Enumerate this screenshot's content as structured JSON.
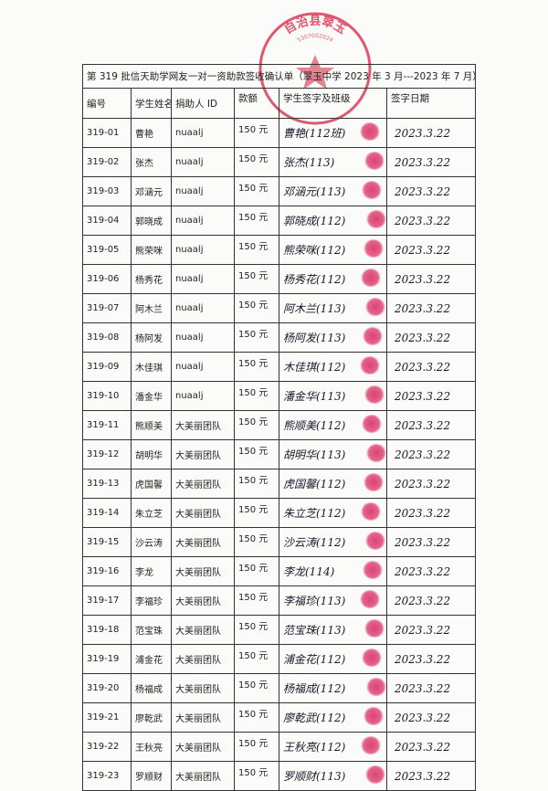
{
  "title": "第 319 批信天助学网友一对一资助款签收确认单（翠玉中学 2023 年 3 月---2023 年 7 月）",
  "headers": [
    "编号",
    "学生姓名",
    "捐助人 ID",
    "款额",
    "学生签字及班级",
    "签字日期"
  ],
  "stamp": {
    "text": "…自治县翠玉…",
    "number": "5307002024",
    "color": "#d8304a"
  },
  "rows": [
    {
      "id": "319-01",
      "name": "曹艳",
      "donor": "nuaalj",
      "amount": "150 元",
      "signature": "曹艳(112班)",
      "date": "2023.3.22"
    },
    {
      "id": "319-02",
      "name": "张杰",
      "donor": "nuaalj",
      "amount": "150 元",
      "signature": "张杰(113)",
      "date": "2023.3.22"
    },
    {
      "id": "319-03",
      "name": "邓涵元",
      "donor": "nuaalj",
      "amount": "150 元",
      "signature": "邓涵元(113)",
      "date": "2023.3.22"
    },
    {
      "id": "319-04",
      "name": "郭晓成",
      "donor": "nuaalj",
      "amount": "150 元",
      "signature": "郭晓成(112)",
      "date": "2023.3.22"
    },
    {
      "id": "319-05",
      "name": "熊荣咪",
      "donor": "nuaalj",
      "amount": "150 元",
      "signature": "熊荣咪(112)",
      "date": "2023.3.22"
    },
    {
      "id": "319-06",
      "name": "杨秀花",
      "donor": "nuaalj",
      "amount": "150 元",
      "signature": "杨秀花(112)",
      "date": "2023.3.22"
    },
    {
      "id": "319-07",
      "name": "阿木兰",
      "donor": "nuaalj",
      "amount": "150 元",
      "signature": "阿木兰(113)",
      "date": "2023.3.22"
    },
    {
      "id": "319-08",
      "name": "杨阿发",
      "donor": "nuaalj",
      "amount": "150 元",
      "signature": "杨阿发(113)",
      "date": "2023.3.22"
    },
    {
      "id": "319-09",
      "name": "木佳琪",
      "donor": "nuaalj",
      "amount": "150 元",
      "signature": "木佳琪(112)",
      "date": "2023.3.22"
    },
    {
      "id": "319-10",
      "name": "潘金华",
      "donor": "nuaalj",
      "amount": "150 元",
      "signature": "潘金华(113)",
      "date": "2023.3.22"
    },
    {
      "id": "319-11",
      "name": "熊顺美",
      "donor": "大美丽团队",
      "amount": "150 元",
      "signature": "熊顺美(112)",
      "date": "2023.3.22"
    },
    {
      "id": "319-12",
      "name": "胡明华",
      "donor": "大美丽团队",
      "amount": "150 元",
      "signature": "胡明华(113)",
      "date": "2023.3.22"
    },
    {
      "id": "319-13",
      "name": "虎国馨",
      "donor": "大美丽团队",
      "amount": "150 元",
      "signature": "虎国馨(112)",
      "date": "2023.3.22"
    },
    {
      "id": "319-14",
      "name": "朱立芝",
      "donor": "大美丽团队",
      "amount": "150 元",
      "signature": "朱立芝(112)",
      "date": "2023.3.22"
    },
    {
      "id": "319-15",
      "name": "沙云涛",
      "donor": "大美丽团队",
      "amount": "150 元",
      "signature": "沙云涛(112)",
      "date": "2023.3.22"
    },
    {
      "id": "319-16",
      "name": "李龙",
      "donor": "大美丽团队",
      "amount": "150 元",
      "signature": "李龙(114)",
      "date": "2023.3.22"
    },
    {
      "id": "319-17",
      "name": "李福珍",
      "donor": "大美丽团队",
      "amount": "150 元",
      "signature": "李福珍(113)",
      "date": "2023.3.22"
    },
    {
      "id": "319-18",
      "name": "范宝珠",
      "donor": "大美丽团队",
      "amount": "150 元",
      "signature": "范宝珠(113)",
      "date": "2023.3.22"
    },
    {
      "id": "319-19",
      "name": "浦金花",
      "donor": "大美丽团队",
      "amount": "150 元",
      "signature": "浦金花(112)",
      "date": "2023.3.22"
    },
    {
      "id": "319-20",
      "name": "杨福成",
      "donor": "大美丽团队",
      "amount": "150 元",
      "signature": "杨福成(112)",
      "date": "2023.3.22"
    },
    {
      "id": "319-21",
      "name": "廖乾武",
      "donor": "大美丽团队",
      "amount": "150 元",
      "signature": "廖乾武(112)",
      "date": "2023.3.22"
    },
    {
      "id": "319-22",
      "name": "王秋亮",
      "donor": "大美丽团队",
      "amount": "150 元",
      "signature": "王秋亮(112)",
      "date": "2023.3.22"
    },
    {
      "id": "319-23",
      "name": "罗顺财",
      "donor": "大美丽团队",
      "amount": "150 元",
      "signature": "罗顺财(113)",
      "date": "2023.3.22"
    }
  ]
}
